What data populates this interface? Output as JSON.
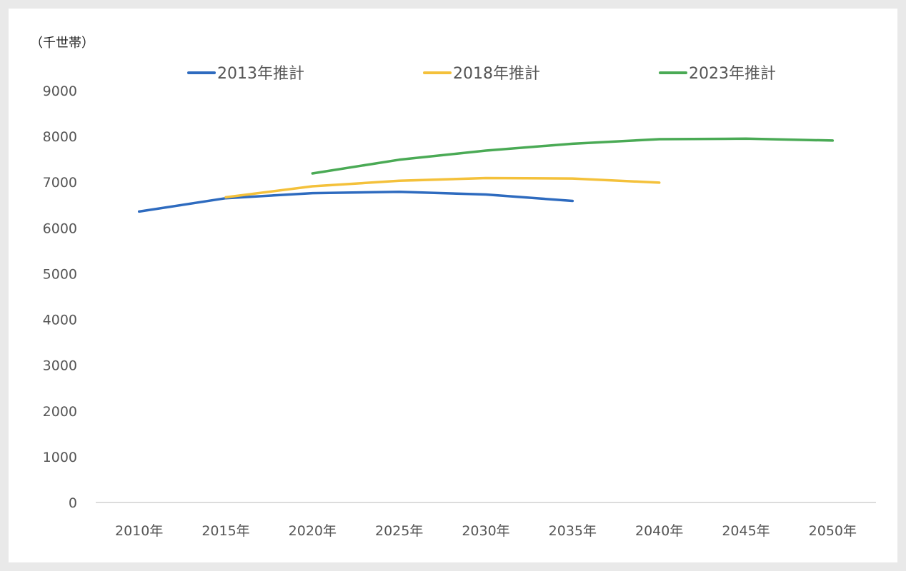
{
  "chart_data": {
    "type": "line",
    "unit_label": "（千世帯）",
    "categories": [
      "2010年",
      "2015年",
      "2020年",
      "2025年",
      "2030年",
      "2035年",
      "2040年",
      "2045年",
      "2050年"
    ],
    "ylim": [
      0,
      9000
    ],
    "yticks": [
      0,
      1000,
      2000,
      3000,
      4000,
      5000,
      6000,
      7000,
      8000,
      9000
    ],
    "grid": false,
    "legend_position": "top",
    "series": [
      {
        "name": "2013年推計",
        "color": "#2e6bbf",
        "values": [
          6358,
          6650,
          6760,
          6790,
          6730,
          6590,
          null,
          null,
          null
        ]
      },
      {
        "name": "2018年推計",
        "color": "#f4c13b",
        "values": [
          null,
          6670,
          6910,
          7030,
          7090,
          7080,
          6990,
          null,
          null
        ]
      },
      {
        "name": "2023年推計",
        "color": "#4aaa55",
        "values": [
          null,
          null,
          7190,
          7490,
          7690,
          7840,
          7940,
          7950,
          7910
        ]
      }
    ]
  }
}
